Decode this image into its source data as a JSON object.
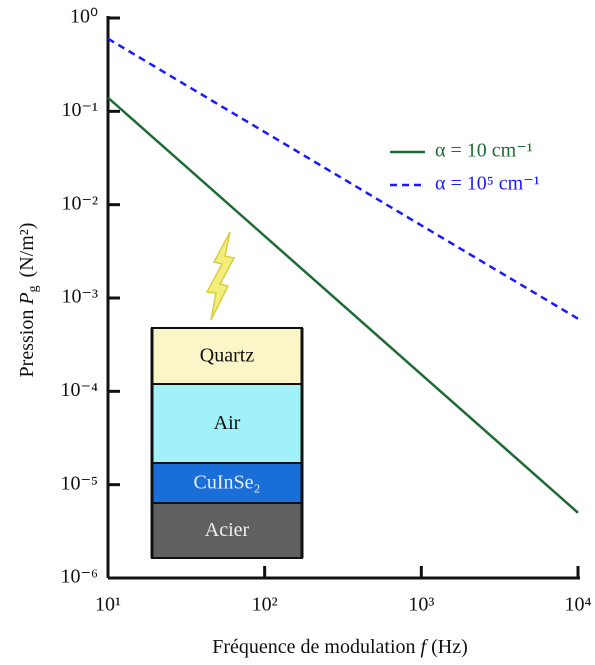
{
  "chart_data": {
    "type": "line",
    "xlabel": {
      "text": "Fréquence de modulation",
      "symbol": "f",
      "unit": "(Hz)"
    },
    "ylabel": {
      "text": "Pression",
      "symbol": "P",
      "subscript": "g",
      "unit": "(N/m²)"
    },
    "x": [
      10,
      10000
    ],
    "series": [
      {
        "name": "α = 10 cm⁻¹",
        "color": "#1e6b36",
        "style": "solid",
        "values": [
          0.14,
          5e-06
        ]
      },
      {
        "name": "α = 10⁵ cm⁻¹",
        "color": "#1a1aff",
        "style": "dashed",
        "values": [
          0.6,
          0.0006
        ]
      }
    ],
    "xlim": [
      10,
      10000
    ],
    "ylim": [
      1e-06,
      1
    ],
    "xscale": "log",
    "yscale": "log",
    "xticks": [
      {
        "value": 10,
        "label": "10¹"
      },
      {
        "value": 100,
        "label": "10²"
      },
      {
        "value": 1000,
        "label": "10³"
      },
      {
        "value": 10000,
        "label": "10⁴"
      }
    ],
    "yticks": [
      {
        "value": 1e-06,
        "label": "10⁻⁶"
      },
      {
        "value": 1e-05,
        "label": "10⁻⁵"
      },
      {
        "value": 0.0001,
        "label": "10⁻⁴"
      },
      {
        "value": 0.001,
        "label": "10⁻³"
      },
      {
        "value": 0.01,
        "label": "10⁻²"
      },
      {
        "value": 0.1,
        "label": "10⁻¹"
      },
      {
        "value": 1,
        "label": "10⁰"
      }
    ],
    "legend": "upper right"
  },
  "inset": {
    "layers": [
      {
        "label": "Quartz",
        "color": "#faf6c8",
        "text_color": "#111111"
      },
      {
        "label": "Air",
        "color": "#a0f2f8",
        "text_color": "#111111"
      },
      {
        "label": "CuInSe₂",
        "color": "#1a6ed8",
        "text_color": "#e8f0ff"
      },
      {
        "label": "Acier",
        "color": "#606060",
        "text_color": "#f0f0f0"
      }
    ]
  }
}
